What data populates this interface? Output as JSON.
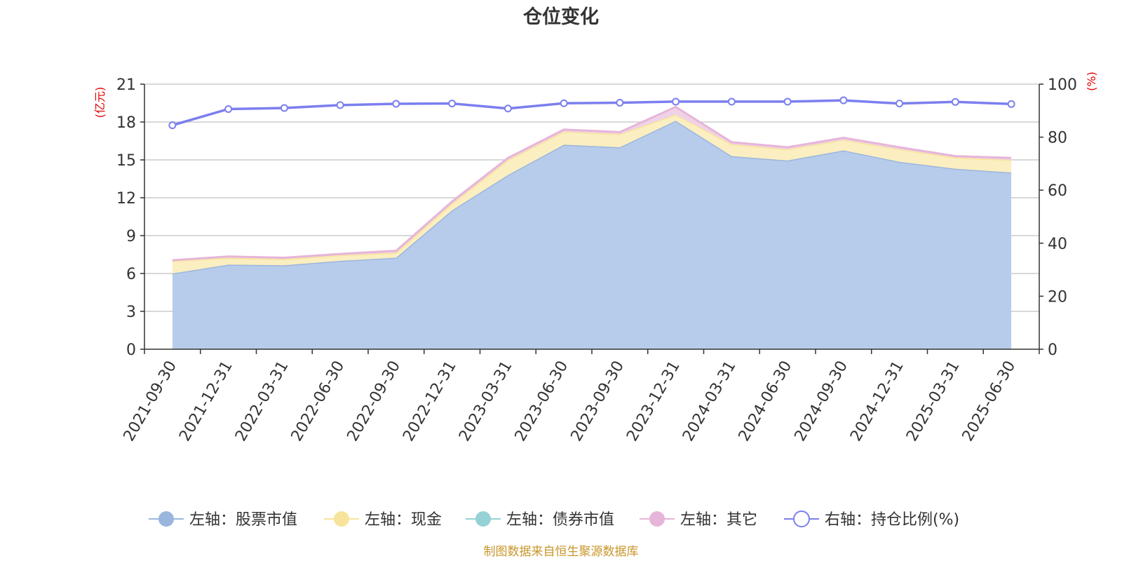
{
  "chart_data": {
    "type": "area",
    "title": "仓位变化",
    "categories": [
      "2021-09-30",
      "2021-12-31",
      "2022-03-31",
      "2022-06-30",
      "2022-09-30",
      "2022-12-31",
      "2023-03-31",
      "2023-06-30",
      "2023-09-30",
      "2023-12-31",
      "2024-03-31",
      "2024-06-30",
      "2024-09-30",
      "2024-12-31",
      "2025-03-31",
      "2025-06-30"
    ],
    "left_axis": {
      "unit": "(亿元)",
      "min": 0,
      "max": 21,
      "ticks": [
        0,
        3,
        6,
        9,
        12,
        15,
        18,
        21
      ]
    },
    "right_axis": {
      "unit": "(%)",
      "min": 0,
      "max": 100,
      "ticks": [
        0,
        20,
        40,
        60,
        80,
        100
      ]
    },
    "series": [
      {
        "name": "左轴：股票市值",
        "axis": "left",
        "type": "area",
        "stack": true,
        "color": "#9ab6de",
        "fill": "#b7cceb",
        "values": [
          6.0,
          6.7,
          6.65,
          7.0,
          7.25,
          11.0,
          13.8,
          16.2,
          16.0,
          18.1,
          15.3,
          14.95,
          15.75,
          14.85,
          14.3,
          14.0
        ]
      },
      {
        "name": "左轴：现金",
        "axis": "left",
        "type": "area",
        "stack": true,
        "color": "#f7e39b",
        "fill": "#fbeec0",
        "values": [
          1.0,
          0.55,
          0.5,
          0.45,
          0.4,
          0.55,
          1.2,
          1.05,
          1.05,
          0.5,
          0.95,
          0.9,
          0.85,
          1.0,
          0.9,
          1.0
        ]
      },
      {
        "name": "左轴：债券市值",
        "axis": "left",
        "type": "area",
        "stack": true,
        "color": "#96d2d5",
        "fill": "#b6e0e2",
        "values": [
          0,
          0,
          0,
          0,
          0,
          0,
          0,
          0,
          0,
          0,
          0,
          0,
          0,
          0,
          0,
          0
        ]
      },
      {
        "name": "左轴：其它",
        "axis": "left",
        "type": "area",
        "stack": true,
        "color": "#e6b5d9",
        "fill": "#f0d2e8",
        "values": [
          0.05,
          0.1,
          0.1,
          0.1,
          0.15,
          0.15,
          0.15,
          0.15,
          0.15,
          0.6,
          0.15,
          0.15,
          0.15,
          0.15,
          0.1,
          0.15
        ]
      },
      {
        "name": "右轴：持仓比例(%)",
        "axis": "right",
        "type": "line",
        "color": "#7b7fee",
        "values": [
          84.5,
          90.6,
          91.0,
          92.1,
          92.6,
          92.7,
          90.8,
          92.8,
          93.0,
          93.4,
          93.4,
          93.4,
          93.9,
          92.7,
          93.3,
          92.5
        ]
      }
    ],
    "grid": true,
    "legend_position": "bottom"
  },
  "footer": "制图数据来自恒生聚源数据库"
}
